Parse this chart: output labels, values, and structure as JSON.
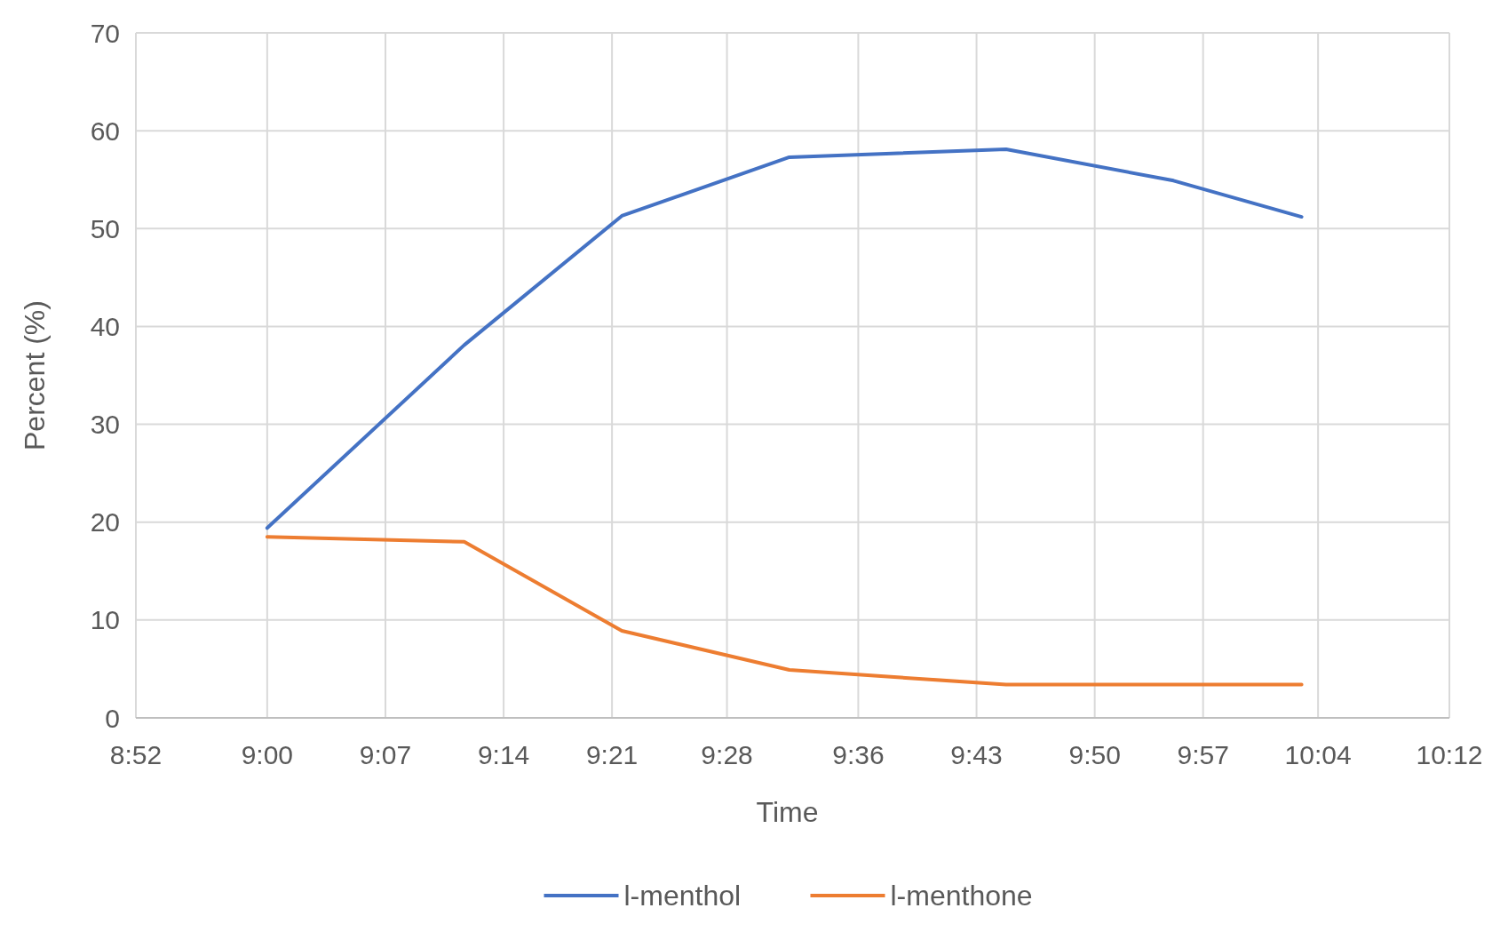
{
  "chart_data": {
    "type": "line",
    "xlabel": "Time",
    "ylabel": "Percent (%)",
    "xlim": [
      8.8667,
      10.2
    ],
    "xticks": [
      {
        "value": 8.8667,
        "label": "8:52"
      },
      {
        "value": 9.0,
        "label": "9:00"
      },
      {
        "value": 9.12,
        "label": "9:07"
      },
      {
        "value": 9.24,
        "label": "9:14"
      },
      {
        "value": 9.35,
        "label": "9:21"
      },
      {
        "value": 9.4667,
        "label": "9:28"
      },
      {
        "value": 9.6,
        "label": "9:36"
      },
      {
        "value": 9.72,
        "label": "9:43"
      },
      {
        "value": 9.84,
        "label": "9:50"
      },
      {
        "value": 9.95,
        "label": "9:57"
      },
      {
        "value": 10.0667,
        "label": "10:04"
      },
      {
        "value": 10.2,
        "label": "10:12"
      }
    ],
    "ylim": [
      0,
      70
    ],
    "yticks": [
      0,
      10,
      20,
      30,
      40,
      50,
      60,
      70
    ],
    "x": [
      9.0,
      9.2,
      9.36,
      9.53,
      9.75,
      9.92,
      10.05
    ],
    "series": [
      {
        "name": "l-menthol",
        "color": "#4472c4",
        "values": [
          19.4,
          38.1,
          51.3,
          57.3,
          58.1,
          54.9,
          51.2
        ]
      },
      {
        "name": "l-menthone",
        "color": "#ed7d31",
        "values": [
          18.5,
          18.0,
          8.9,
          4.9,
          3.4,
          3.4,
          3.4
        ]
      }
    ],
    "grid": true,
    "legend": "bottom",
    "marker": "none",
    "line_style": "solid"
  }
}
